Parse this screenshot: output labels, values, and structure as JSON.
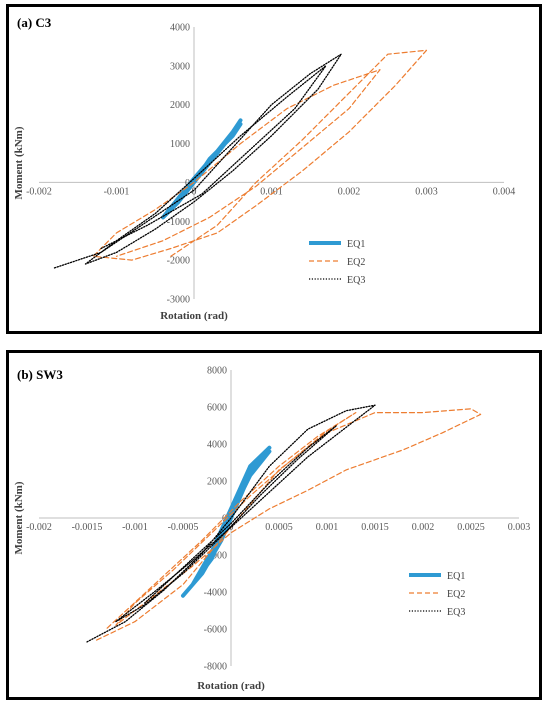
{
  "chart_data": [
    {
      "type": "line",
      "title": "(a) C3",
      "xlabel": "Rotation (rad)",
      "ylabel": "Moment (kNm)",
      "xlim": [
        -0.002,
        0.004
      ],
      "ylim": [
        -3000,
        4000
      ],
      "xticks": [
        "-0.002",
        "-0.001",
        "0",
        "0.001",
        "0.002",
        "0.003",
        "0.004"
      ],
      "yticks": [
        "-3000",
        "-2000",
        "-1000",
        "0",
        "1000",
        "2000",
        "3000",
        "4000"
      ],
      "legend_position": "bottom-right",
      "series": [
        {
          "name": "EQ1",
          "color": "#2E9AD3",
          "style": "solid",
          "x": [
            0,
            0.0002,
            0.0004,
            0.0006,
            0.0005,
            0.0002,
            0,
            -0.0002,
            -0.0004,
            -0.0002,
            0,
            0.0003,
            0.0005,
            0.0006
          ],
          "y": [
            0,
            500,
            1000,
            1500,
            1200,
            600,
            0,
            -500,
            -900,
            -400,
            100,
            800,
            1300,
            1600
          ]
        },
        {
          "name": "EQ2",
          "color": "#ED7D31",
          "style": "dashed",
          "x": [
            -0.0003,
            0.0003,
            0.0008,
            0.0014,
            0.002,
            0.0025,
            0.003,
            0.0026,
            0.002,
            0.0014,
            0.0008,
            0.0003,
            -0.0003,
            -0.0008,
            -0.0013,
            -0.001,
            -0.0005,
            0,
            0.0006,
            0.0012,
            0.0018,
            0.0024,
            0.002,
            0.0014,
            0.0008,
            0.0002,
            -0.0004,
            -0.001
          ],
          "y": [
            -1900,
            -1100,
            0,
            1100,
            2300,
            3300,
            3400,
            2500,
            1300,
            300,
            -600,
            -1300,
            -1700,
            -2000,
            -1900,
            -1300,
            -700,
            0,
            1000,
            1900,
            2500,
            2900,
            1900,
            900,
            -100,
            -900,
            -1500,
            -1900
          ]
        },
        {
          "name": "EQ3",
          "color": "#000000",
          "style": "dotted",
          "x": [
            -0.0018,
            -0.0012,
            -0.0006,
            0,
            0.0005,
            0.001,
            0.0015,
            0.0019,
            0.0016,
            0.001,
            0.0005,
            0,
            -0.0005,
            -0.001,
            -0.0014,
            -0.001,
            -0.0005,
            0,
            0.0006,
            0.0012,
            0.0017,
            0.0013,
            0.0007,
            0.0001,
            -0.0006,
            -0.0012
          ],
          "y": [
            -2200,
            -1800,
            -1000,
            -200,
            900,
            2000,
            2800,
            3300,
            2400,
            1200,
            300,
            -500,
            -1200,
            -1800,
            -2100,
            -1500,
            -800,
            100,
            1200,
            2200,
            3000,
            1900,
            800,
            -300,
            -1100,
            -1700
          ]
        }
      ]
    },
    {
      "type": "line",
      "title": "(b) SW3",
      "xlabel": "Rotation (rad)",
      "ylabel": "Moment (kNm)",
      "xlim": [
        -0.002,
        0.003
      ],
      "ylim": [
        -8000,
        8000
      ],
      "xticks": [
        "-0.002",
        "-0.0015",
        "-0.001",
        "-0.0005",
        "0",
        "0.0005",
        "0.001",
        "0.0015",
        "0.002",
        "0.0025",
        "0.003"
      ],
      "yticks": [
        "-8000",
        "-6000",
        "-4000",
        "-2000",
        "0",
        "2000",
        "4000",
        "6000",
        "8000"
      ],
      "legend_position": "bottom-right",
      "series": [
        {
          "name": "EQ1",
          "color": "#2E9AD3",
          "style": "solid",
          "x": [
            -0.0005,
            -0.0003,
            -0.0001,
            0,
            0.0001,
            0.0002,
            0.0003,
            0.0004,
            0.0002,
            0,
            -0.0002,
            -0.0004,
            -0.0002,
            0,
            0.0002,
            0.0004
          ],
          "y": [
            -4200,
            -3000,
            -1200,
            0,
            1200,
            2400,
            3300,
            3800,
            2800,
            500,
            -1800,
            -3600,
            -2200,
            200,
            2300,
            3600
          ]
        },
        {
          "name": "EQ2",
          "color": "#ED7D31",
          "style": "dashed",
          "x": [
            -0.0014,
            -0.001,
            -0.0005,
            0,
            0.0005,
            0.001,
            0.0015,
            0.002,
            0.0025,
            0.0026,
            0.0022,
            0.0018,
            0.0012,
            0.0008,
            0.0004,
            0,
            -0.0004,
            -0.0008,
            -0.0012,
            -0.001,
            -0.0006,
            -0.0002,
            0.0002,
            0.0006,
            0.001,
            0.0013,
            0.0009,
            0.0005,
            0.0001,
            -0.0003,
            -0.0008,
            -0.0013
          ],
          "y": [
            -6600,
            -5600,
            -3600,
            -500,
            2600,
            4600,
            5700,
            5700,
            5900,
            5600,
            4600,
            3700,
            2600,
            1500,
            500,
            -800,
            -2600,
            -4200,
            -5800,
            -4600,
            -2800,
            -800,
            1200,
            3000,
            4700,
            5700,
            4400,
            2800,
            900,
            -1200,
            -3600,
            -6000
          ]
        },
        {
          "name": "EQ3",
          "color": "#000000",
          "style": "dotted",
          "x": [
            -0.0015,
            -0.0011,
            -0.0007,
            -0.0003,
            0,
            0.0004,
            0.0008,
            0.0012,
            0.0015,
            0.0012,
            0.0008,
            0.0004,
            0,
            -0.0004,
            -0.0008,
            -0.0012,
            -0.0009,
            -0.0005,
            -0.0001,
            0.0003,
            0.0007,
            0.0011,
            0.0008,
            0.0004,
            0,
            -0.0004,
            -0.0009
          ],
          "y": [
            -6700,
            -5600,
            -3900,
            -1900,
            0,
            2800,
            4800,
            5800,
            6100,
            4900,
            3300,
            1400,
            -500,
            -2300,
            -4000,
            -5600,
            -4700,
            -3000,
            -1000,
            1200,
            3200,
            5000,
            3800,
            1900,
            -300,
            -2200,
            -4600
          ]
        }
      ]
    }
  ]
}
